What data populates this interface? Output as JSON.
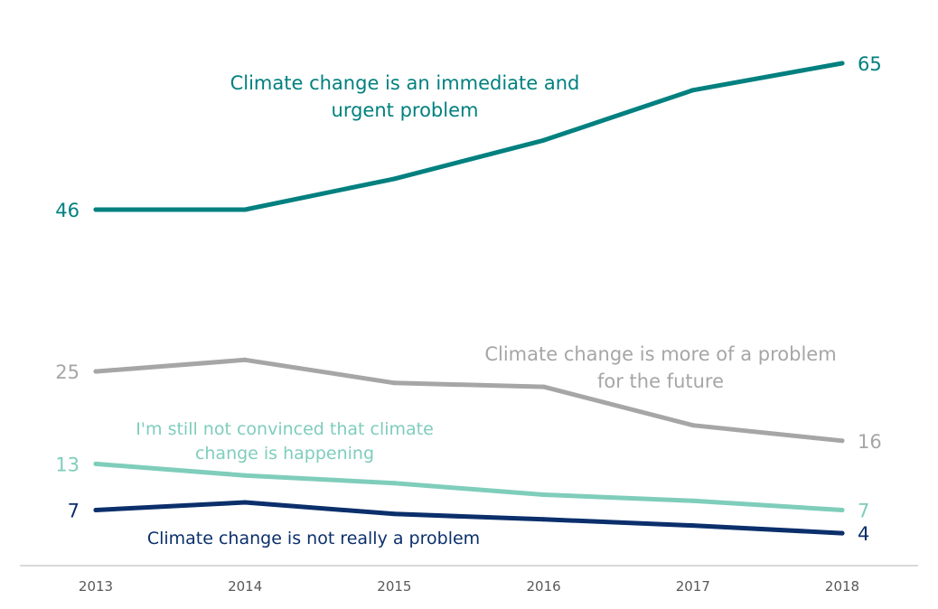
{
  "chart_data": {
    "type": "line",
    "title": "",
    "xlabel": "",
    "ylabel": "",
    "x": [
      "2013",
      "2014",
      "2015",
      "2016",
      "2017",
      "2018"
    ],
    "ylim": [
      0,
      70
    ],
    "grid": false,
    "legend": "inline labels",
    "series": [
      {
        "name": "Climate change is an immediate and urgent problem",
        "label_lines": [
          "Climate change is an immediate and",
          "urgent problem"
        ],
        "color": "#00807F",
        "values": [
          46,
          46,
          50,
          55,
          61.5,
          65
        ],
        "start_label": "46",
        "end_label": "65"
      },
      {
        "name": "Climate change is more of a problem for the future",
        "label_lines": [
          "Climate change is more of a problem",
          "for the future"
        ],
        "color": "#A6A6A6",
        "values": [
          25,
          26.5,
          23.5,
          23,
          18,
          16
        ],
        "start_label": "25",
        "end_label": "16"
      },
      {
        "name": "I'm still not convinced that climate change is happening",
        "label_lines": [
          "I'm still not convinced that climate",
          "change is happening"
        ],
        "color": "#7FCDBB",
        "values": [
          13,
          11.5,
          10.5,
          9,
          8.2,
          7
        ],
        "start_label": "13",
        "end_label": "7"
      },
      {
        "name": "Climate change is not really a problem",
        "label_lines": [
          "Climate change is not really a problem"
        ],
        "color": "#0B2F6B",
        "values": [
          7,
          8,
          6.5,
          5.8,
          5,
          4
        ],
        "start_label": "7",
        "end_label": "4"
      }
    ]
  },
  "axis_color": "#D9D9D9",
  "tick_color": "#595959"
}
